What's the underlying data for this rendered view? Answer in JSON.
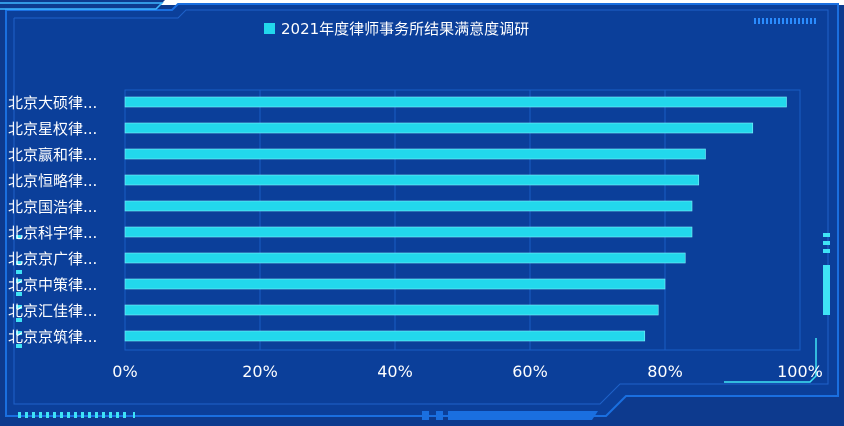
{
  "colors": {
    "background": "#0b3f9a",
    "frame": "#1a6fe0",
    "accent": "#3fe3f5",
    "bar": "#22d8ec",
    "text": "#ffffff"
  },
  "chart_data": {
    "type": "bar",
    "orientation": "horizontal",
    "legend": "2021年度律师事务所结果满意度调研",
    "legend_position": "top-center",
    "categories": [
      "北京大硕律...",
      "北京星权律...",
      "北京赢和律...",
      "北京恒略律...",
      "北京国浩律...",
      "北京科宇律...",
      "北京京广律...",
      "北京中策律...",
      "北京汇佳律...",
      "北京京筑律..."
    ],
    "series": [
      {
        "name": "2021年度律师事务所结果满意度调研",
        "values": [
          98,
          93,
          86,
          85,
          84,
          84,
          83,
          80,
          79,
          77
        ]
      }
    ],
    "xlim": [
      0,
      100
    ],
    "x_ticks": [
      "0%",
      "20%",
      "40%",
      "60%",
      "80%",
      "100%"
    ],
    "grid": true
  }
}
